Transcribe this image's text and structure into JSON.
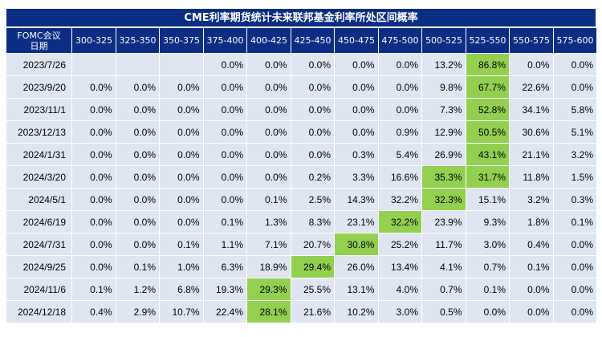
{
  "title": "CME利率期货统计未来联邦基金利率所处区间概率",
  "header": {
    "date_col_line1": "FOMC会议",
    "date_col_line2": "日期",
    "ranges": [
      "300-325",
      "325-350",
      "350-375",
      "375-400",
      "400-425",
      "425-450",
      "450-475",
      "475-500",
      "500-525",
      "525-550",
      "550-575",
      "575-600"
    ]
  },
  "highlight_color": "#92d050",
  "rows": [
    {
      "date": "2023/7/26",
      "cells": [
        "",
        "",
        "",
        "0.0%",
        "0.0%",
        "0.0%",
        "0.0%",
        "0.0%",
        "13.2%",
        "86.8%",
        "0.0%",
        "0.0%"
      ],
      "hi": 9
    },
    {
      "date": "2023/9/20",
      "cells": [
        "0.0%",
        "0.0%",
        "0.0%",
        "0.0%",
        "0.0%",
        "0.0%",
        "0.0%",
        "0.0%",
        "9.8%",
        "67.7%",
        "22.6%",
        "0.0%"
      ],
      "hi": 9
    },
    {
      "date": "2023/11/1",
      "cells": [
        "0.0%",
        "0.0%",
        "0.0%",
        "0.0%",
        "0.0%",
        "0.0%",
        "0.0%",
        "0.0%",
        "7.3%",
        "52.8%",
        "34.1%",
        "5.8%"
      ],
      "hi": 9
    },
    {
      "date": "2023/12/13",
      "cells": [
        "0.0%",
        "0.0%",
        "0.0%",
        "0.0%",
        "0.0%",
        "0.0%",
        "0.0%",
        "0.9%",
        "12.9%",
        "50.5%",
        "30.6%",
        "5.1%"
      ],
      "hi": 9
    },
    {
      "date": "2024/1/31",
      "cells": [
        "0.0%",
        "0.0%",
        "0.0%",
        "0.0%",
        "0.0%",
        "0.0%",
        "0.3%",
        "5.4%",
        "26.9%",
        "43.1%",
        "21.1%",
        "3.2%"
      ],
      "hi": 9
    },
    {
      "date": "2024/3/20",
      "cells": [
        "0.0%",
        "0.0%",
        "0.0%",
        "0.0%",
        "0.0%",
        "0.2%",
        "3.3%",
        "16.6%",
        "35.3%",
        "31.7%",
        "11.8%",
        "1.5%"
      ],
      "hi": [
        8,
        9
      ]
    },
    {
      "date": "2024/5/1",
      "cells": [
        "0.0%",
        "0.0%",
        "0.0%",
        "0.0%",
        "0.1%",
        "2.5%",
        "14.3%",
        "32.2%",
        "32.3%",
        "15.1%",
        "3.2%",
        "0.3%"
      ],
      "hi": 8
    },
    {
      "date": "2024/6/19",
      "cells": [
        "0.0%",
        "0.0%",
        "0.0%",
        "0.1%",
        "1.3%",
        "8.3%",
        "23.1%",
        "32.2%",
        "23.9%",
        "9.3%",
        "1.8%",
        "0.1%"
      ],
      "hi": 7
    },
    {
      "date": "2024/7/31",
      "cells": [
        "0.0%",
        "0.0%",
        "0.1%",
        "1.1%",
        "7.1%",
        "20.7%",
        "30.8%",
        "25.2%",
        "11.7%",
        "3.0%",
        "0.4%",
        "0.0%"
      ],
      "hi": 6
    },
    {
      "date": "2024/9/25",
      "cells": [
        "0.0%",
        "0.1%",
        "1.0%",
        "6.3%",
        "18.9%",
        "29.4%",
        "26.0%",
        "13.4%",
        "4.1%",
        "0.7%",
        "0.1%",
        "0.0%"
      ],
      "hi": 5
    },
    {
      "date": "2024/11/6",
      "cells": [
        "0.1%",
        "1.2%",
        "6.8%",
        "19.3%",
        "29.3%",
        "25.5%",
        "13.1%",
        "4.0%",
        "0.7%",
        "0.1%",
        "0.0%",
        "0.0%"
      ],
      "hi": 4
    },
    {
      "date": "2024/12/18",
      "cells": [
        "0.4%",
        "2.9%",
        "10.7%",
        "22.4%",
        "28.1%",
        "21.6%",
        "10.2%",
        "3.0%",
        "0.5%",
        "0.0%",
        "0.0%",
        "0.0%"
      ],
      "hi": 4
    }
  ]
}
